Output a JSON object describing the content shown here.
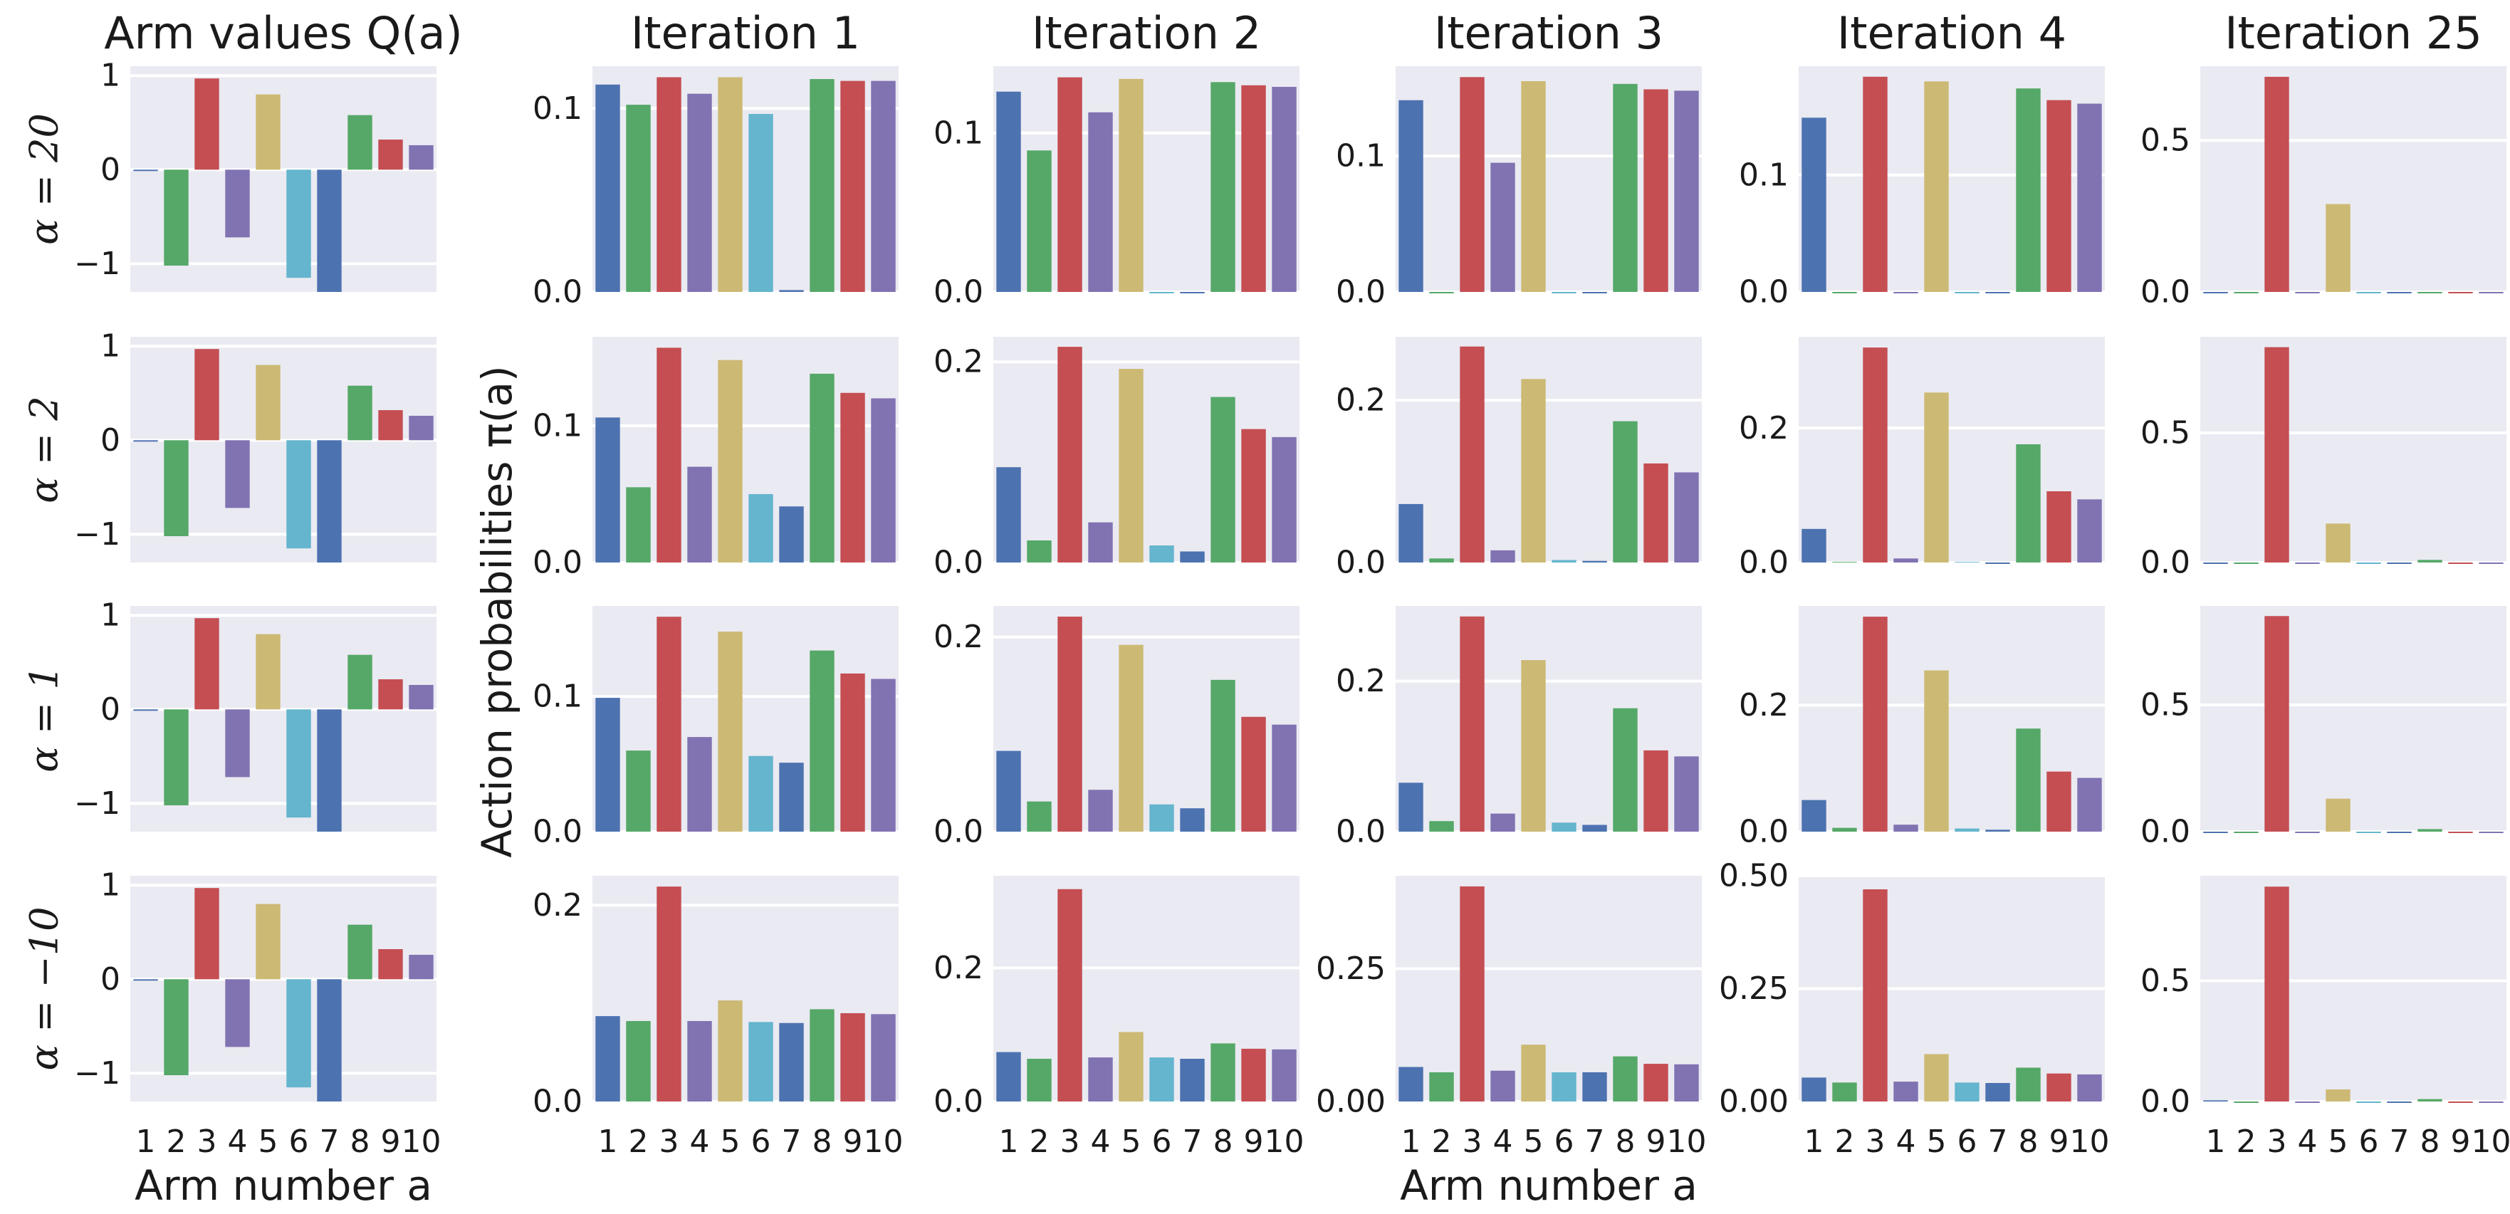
{
  "chart_data": {
    "type": "bar",
    "title_left": "Arm values Q(a)",
    "ylabel": "Action probabilities π(a)",
    "xlabel": "Arm number a",
    "categories": [
      "1",
      "2",
      "3",
      "4",
      "5",
      "6",
      "7",
      "8",
      "9",
      "10"
    ],
    "colors": [
      "#4c72b0",
      "#55a868",
      "#c44e52",
      "#8172b2",
      "#ccb974",
      "#64b5cd",
      "#4c72b0",
      "#55a868",
      "#c44e52",
      "#8172b2"
    ],
    "arm_values": {
      "values": [
        0.0,
        -1.02,
        0.97,
        -0.72,
        0.8,
        -1.15,
        -1.3,
        0.58,
        0.32,
        0.26
      ],
      "ylim": [
        -1.3,
        1.1
      ],
      "yticks": [
        -1,
        0,
        1
      ],
      "yticklabels": [
        "−1",
        "0",
        "1"
      ]
    },
    "columns": [
      "Iteration 1",
      "Iteration 2",
      "Iteration 3",
      "Iteration 4",
      "Iteration 25"
    ],
    "rows": [
      {
        "alpha_label": "α = 20",
        "panels": [
          {
            "values": [
              0.113,
              0.102,
              0.117,
              0.108,
              0.117,
              0.097,
              0.001,
              0.116,
              0.115,
              0.115
            ],
            "ylim": [
              0,
              0.123
            ],
            "yticks": [
              0,
              0.1
            ],
            "yticklabels": [
              "0.0",
              "0.1"
            ]
          },
          {
            "values": [
              0.126,
              0.089,
              0.135,
              0.113,
              0.134,
              0.0,
              0.0,
              0.132,
              0.13,
              0.129
            ],
            "ylim": [
              0,
              0.142
            ],
            "yticks": [
              0,
              0.1
            ],
            "yticklabels": [
              "0.0",
              "0.1"
            ]
          },
          {
            "values": [
              0.141,
              0.0,
              0.158,
              0.095,
              0.155,
              0.0,
              0.0,
              0.153,
              0.149,
              0.148
            ],
            "ylim": [
              0,
              0.166
            ],
            "yticks": [
              0,
              0.1
            ],
            "yticklabels": [
              "0.0",
              "0.1"
            ]
          },
          {
            "values": [
              0.149,
              0.0,
              0.184,
              0.0,
              0.18,
              0.0,
              0.0,
              0.174,
              0.164,
              0.161
            ],
            "ylim": [
              0,
              0.193
            ],
            "yticks": [
              0,
              0.1
            ],
            "yticklabels": [
              "0.0",
              "0.1"
            ]
          },
          {
            "values": [
              0.0,
              0.0,
              0.71,
              0.0,
              0.29,
              0.0,
              0.0,
              0.0,
              0.0,
              0.0
            ],
            "ylim": [
              0,
              0.745
            ],
            "yticks": [
              0,
              0.5
            ],
            "yticklabels": [
              "0.0",
              "0.5"
            ]
          }
        ]
      },
      {
        "alpha_label": "α = 2",
        "panels": [
          {
            "values": [
              0.106,
              0.055,
              0.157,
              0.07,
              0.148,
              0.05,
              0.041,
              0.138,
              0.124,
              0.12
            ],
            "ylim": [
              0,
              0.165
            ],
            "yticks": [
              0,
              0.1
            ],
            "yticklabels": [
              "0.0",
              "0.1"
            ]
          },
          {
            "values": [
              0.095,
              0.022,
              0.215,
              0.04,
              0.193,
              0.017,
              0.011,
              0.165,
              0.133,
              0.125
            ],
            "ylim": [
              0,
              0.225
            ],
            "yticks": [
              0,
              0.2
            ],
            "yticklabels": [
              "0.0",
              "0.2"
            ]
          },
          {
            "values": [
              0.072,
              0.005,
              0.266,
              0.015,
              0.226,
              0.003,
              0.002,
              0.174,
              0.122,
              0.111
            ],
            "ylim": [
              0,
              0.278
            ],
            "yticks": [
              0,
              0.2
            ],
            "yticklabels": [
              "0.0",
              "0.2"
            ]
          },
          {
            "values": [
              0.05,
              0.001,
              0.32,
              0.006,
              0.253,
              0.001,
              0.0,
              0.176,
              0.106,
              0.094
            ],
            "ylim": [
              0,
              0.336
            ],
            "yticks": [
              0,
              0.2
            ],
            "yticklabels": [
              "0.0",
              "0.2"
            ]
          },
          {
            "values": [
              0.0,
              0.0,
              0.83,
              0.0,
              0.15,
              0.0,
              0.0,
              0.01,
              0.0,
              0.0
            ],
            "ylim": [
              0,
              0.87
            ],
            "yticks": [
              0,
              0.5
            ],
            "yticklabels": [
              "0.0",
              "0.5"
            ]
          }
        ]
      },
      {
        "alpha_label": "α = 1",
        "panels": [
          {
            "values": [
              0.099,
              0.06,
              0.159,
              0.07,
              0.148,
              0.056,
              0.051,
              0.134,
              0.117,
              0.113
            ],
            "ylim": [
              0,
              0.167
            ],
            "yticks": [
              0,
              0.1
            ],
            "yticklabels": [
              "0.0",
              "0.1"
            ]
          },
          {
            "values": [
              0.083,
              0.031,
              0.221,
              0.043,
              0.192,
              0.028,
              0.024,
              0.156,
              0.118,
              0.11
            ],
            "ylim": [
              0,
              0.232
            ],
            "yticks": [
              0,
              0.2
            ],
            "yticklabels": [
              "0.0",
              "0.2"
            ]
          },
          {
            "values": [
              0.065,
              0.014,
              0.286,
              0.024,
              0.228,
              0.012,
              0.009,
              0.164,
              0.108,
              0.1
            ],
            "ylim": [
              0,
              0.3
            ],
            "yticks": [
              0,
              0.2
            ],
            "yticklabels": [
              "0.0",
              "0.2"
            ]
          },
          {
            "values": [
              0.05,
              0.006,
              0.34,
              0.011,
              0.255,
              0.005,
              0.003,
              0.163,
              0.095,
              0.085
            ],
            "ylim": [
              0,
              0.357
            ],
            "yticks": [
              0,
              0.2
            ],
            "yticklabels": [
              "0.0",
              "0.2"
            ]
          },
          {
            "values": [
              0.0,
              0.0,
              0.85,
              0.0,
              0.13,
              0.0,
              0.0,
              0.01,
              0.0,
              0.0
            ],
            "ylim": [
              0,
              0.89
            ],
            "yticks": [
              0,
              0.5
            ],
            "yticklabels": [
              "0.0",
              "0.5"
            ]
          }
        ]
      },
      {
        "alpha_label": "α = −10",
        "panels": [
          {
            "values": [
              0.087,
              0.082,
              0.219,
              0.082,
              0.103,
              0.081,
              0.08,
              0.094,
              0.09,
              0.089
            ],
            "ylim": [
              0,
              0.23
            ],
            "yticks": [
              0,
              0.2
            ],
            "yticklabels": [
              "0.0",
              "0.2"
            ]
          },
          {
            "values": [
              0.074,
              0.064,
              0.318,
              0.066,
              0.104,
              0.066,
              0.064,
              0.087,
              0.079,
              0.078
            ],
            "ylim": [
              0,
              0.338
            ],
            "yticks": [
              0,
              0.2
            ],
            "yticklabels": [
              "0.0",
              "0.2"
            ]
          },
          {
            "values": [
              0.065,
              0.055,
              0.405,
              0.058,
              0.107,
              0.055,
              0.055,
              0.085,
              0.071,
              0.07
            ],
            "ylim": [
              0,
              0.425
            ],
            "yticks": [
              0,
              0.25
            ],
            "yticklabels": [
              "0.00",
              "0.25"
            ]
          },
          {
            "values": [
              0.053,
              0.042,
              0.47,
              0.044,
              0.105,
              0.042,
              0.041,
              0.075,
              0.062,
              0.06
            ],
            "ylim": [
              0,
              0.5
            ],
            "yticks": [
              0,
              0.25,
              0.5
            ],
            "yticklabels": [
              "0.00",
              "0.25",
              "0.50"
            ]
          },
          {
            "values": [
              0.005,
              0.0,
              0.89,
              0.0,
              0.05,
              0.0,
              0.0,
              0.01,
              0.0,
              0.0
            ],
            "ylim": [
              0,
              0.935
            ],
            "yticks": [
              0,
              0.5
            ],
            "yticklabels": [
              "0.0",
              "0.5"
            ]
          }
        ]
      }
    ]
  }
}
